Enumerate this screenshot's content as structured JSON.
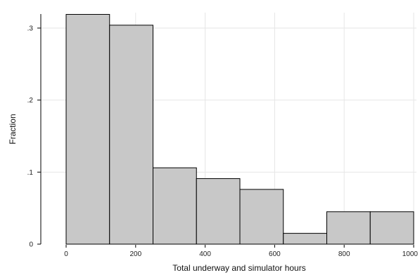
{
  "chart_data": {
    "type": "bar",
    "xlabel": "Total underway and simulator hours",
    "ylabel": "Fraction",
    "xlim": [
      0,
      1000
    ],
    "ylim": [
      0,
      0.32
    ],
    "grid": true,
    "bin_edges": [
      0,
      125,
      250,
      375,
      500,
      625,
      750,
      875,
      1000
    ],
    "values": [
      0.319,
      0.304,
      0.106,
      0.091,
      0.076,
      0.015,
      0.045,
      0.045
    ],
    "x_ticks": [
      0,
      200,
      400,
      600,
      800,
      1000
    ],
    "x_tick_labels": [
      "0",
      "200",
      "400",
      "600",
      "800",
      "1000"
    ],
    "y_ticks": [
      0,
      0.1,
      0.2,
      0.3
    ],
    "y_tick_labels": [
      "0",
      ".1",
      ".2",
      ".3"
    ],
    "colors": {
      "bar_fill": "#c8c8c8",
      "bar_stroke": "#000000",
      "grid": "#e6e6e6"
    }
  }
}
